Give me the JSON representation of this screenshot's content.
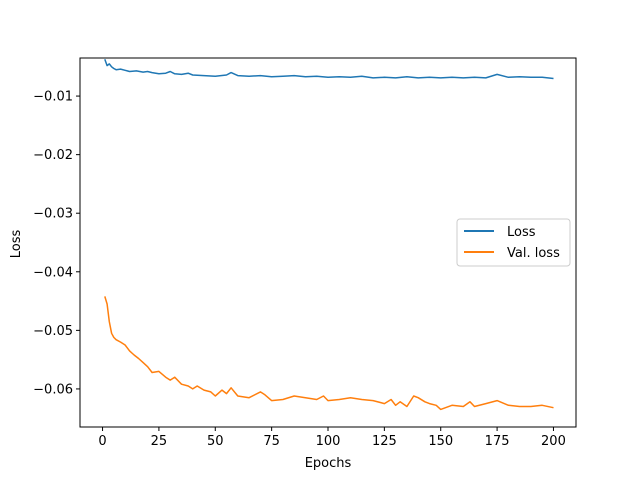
{
  "chart_data": {
    "type": "line",
    "title": "",
    "xlabel": "Epochs",
    "ylabel": "Loss",
    "xlim": [
      -10,
      210
    ],
    "ylim": [
      -0.0665,
      -0.0035
    ],
    "xticks": [
      0,
      25,
      50,
      75,
      100,
      125,
      150,
      175,
      200
    ],
    "yticks": [
      -0.01,
      -0.02,
      -0.03,
      -0.04,
      -0.05,
      -0.06
    ],
    "xtick_labels": [
      "0",
      "25",
      "50",
      "75",
      "100",
      "125",
      "150",
      "175",
      "200"
    ],
    "ytick_labels": [
      "−0.01",
      "−0.02",
      "−0.03",
      "−0.04",
      "−0.05",
      "−0.06"
    ],
    "grid": false,
    "legend_position": "center-right",
    "series": [
      {
        "name": "Loss",
        "color": "#1f77b4",
        "x": [
          1,
          2,
          3,
          4,
          5,
          6,
          8,
          10,
          12,
          15,
          18,
          20,
          22,
          25,
          28,
          30,
          32,
          35,
          38,
          40,
          45,
          50,
          55,
          57,
          60,
          65,
          70,
          75,
          80,
          85,
          90,
          95,
          100,
          105,
          110,
          115,
          120,
          125,
          130,
          135,
          140,
          145,
          150,
          155,
          160,
          165,
          170,
          175,
          180,
          185,
          190,
          195,
          200
        ],
        "y": [
          -0.0037,
          -0.0048,
          -0.0045,
          -0.005,
          -0.0053,
          -0.0055,
          -0.0054,
          -0.0056,
          -0.0058,
          -0.0057,
          -0.0059,
          -0.0058,
          -0.006,
          -0.0062,
          -0.0061,
          -0.0058,
          -0.0062,
          -0.0063,
          -0.0061,
          -0.0064,
          -0.0065,
          -0.0066,
          -0.0064,
          -0.006,
          -0.0065,
          -0.0066,
          -0.0065,
          -0.0067,
          -0.0066,
          -0.0065,
          -0.0067,
          -0.0066,
          -0.0068,
          -0.0067,
          -0.0068,
          -0.0066,
          -0.0069,
          -0.0068,
          -0.0069,
          -0.0067,
          -0.0069,
          -0.0068,
          -0.0069,
          -0.0068,
          -0.0069,
          -0.0068,
          -0.0069,
          -0.0063,
          -0.0068,
          -0.0067,
          -0.0068,
          -0.0068,
          -0.007
        ]
      },
      {
        "name": "Val. loss",
        "color": "#ff7f0e",
        "x": [
          1,
          2,
          3,
          4,
          5,
          6,
          8,
          10,
          12,
          14,
          16,
          18,
          20,
          22,
          25,
          28,
          30,
          32,
          35,
          38,
          40,
          42,
          45,
          48,
          50,
          53,
          55,
          57,
          60,
          65,
          70,
          72,
          75,
          80,
          85,
          90,
          95,
          98,
          100,
          105,
          110,
          115,
          120,
          125,
          128,
          130,
          132,
          135,
          138,
          140,
          143,
          145,
          148,
          150,
          155,
          160,
          163,
          165,
          170,
          175,
          180,
          185,
          190,
          195,
          200
        ],
        "y": [
          -0.0442,
          -0.0455,
          -0.0485,
          -0.0505,
          -0.0512,
          -0.0516,
          -0.052,
          -0.0525,
          -0.0535,
          -0.0542,
          -0.0548,
          -0.0555,
          -0.0562,
          -0.0572,
          -0.057,
          -0.058,
          -0.0585,
          -0.058,
          -0.0592,
          -0.0595,
          -0.06,
          -0.0595,
          -0.0602,
          -0.0605,
          -0.0612,
          -0.0602,
          -0.0608,
          -0.0598,
          -0.0612,
          -0.0615,
          -0.0605,
          -0.061,
          -0.062,
          -0.0618,
          -0.0612,
          -0.0615,
          -0.0618,
          -0.0612,
          -0.062,
          -0.0618,
          -0.0615,
          -0.0618,
          -0.062,
          -0.0625,
          -0.0618,
          -0.0628,
          -0.0622,
          -0.063,
          -0.0612,
          -0.0615,
          -0.0622,
          -0.0625,
          -0.0628,
          -0.0635,
          -0.0628,
          -0.063,
          -0.0622,
          -0.063,
          -0.0625,
          -0.062,
          -0.0628,
          -0.063,
          -0.063,
          -0.0628,
          -0.0632
        ]
      }
    ]
  }
}
